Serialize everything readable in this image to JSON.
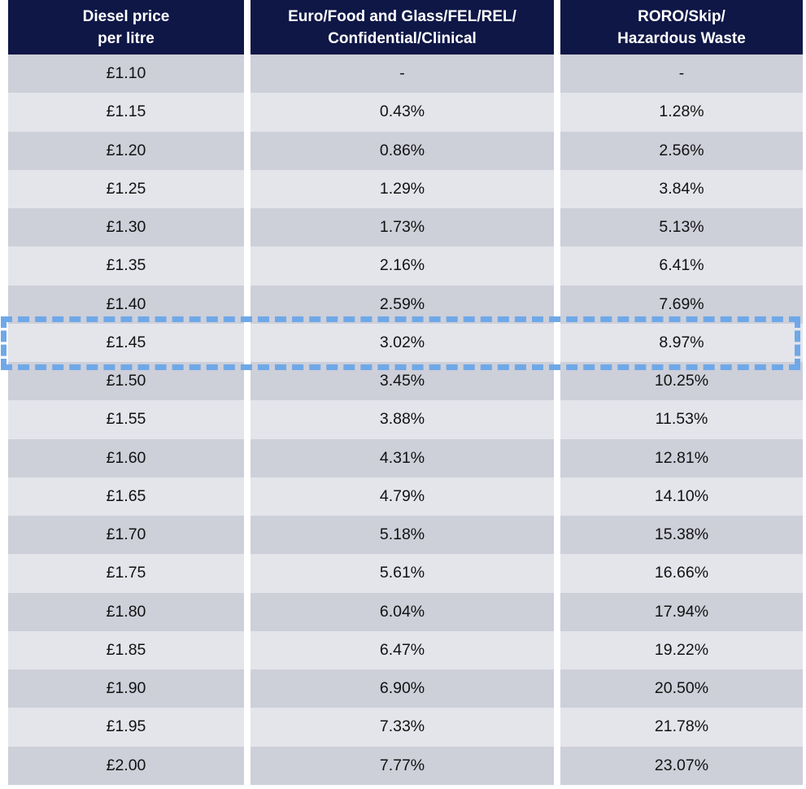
{
  "colors": {
    "header_bg": "#0F1747",
    "row_dark": "#CDCFD9",
    "row_light": "#E4E5EB",
    "highlight_border": "#6FA8E8"
  },
  "table": {
    "headers": {
      "diesel_price": "Diesel price\nper litre",
      "euro_group": "Euro/Food and Glass/FEL/REL/\nConfidential/Clinical",
      "roro_group": "RORO/Skip/\nHazardous Waste"
    },
    "rows": [
      {
        "price": "£1.10",
        "euro": "-",
        "roro": "-"
      },
      {
        "price": "£1.15",
        "euro": "0.43%",
        "roro": "1.28%"
      },
      {
        "price": "£1.20",
        "euro": "0.86%",
        "roro": "2.56%"
      },
      {
        "price": "£1.25",
        "euro": "1.29%",
        "roro": "3.84%"
      },
      {
        "price": "£1.30",
        "euro": "1.73%",
        "roro": "5.13%"
      },
      {
        "price": "£1.35",
        "euro": "2.16%",
        "roro": "6.41%"
      },
      {
        "price": "£1.40",
        "euro": "2.59%",
        "roro": "7.69%"
      },
      {
        "price": "£1.45",
        "euro": "3.02%",
        "roro": "8.97%"
      },
      {
        "price": "£1.50",
        "euro": "3.45%",
        "roro": "10.25%"
      },
      {
        "price": "£1.55",
        "euro": "3.88%",
        "roro": "11.53%"
      },
      {
        "price": "£1.60",
        "euro": "4.31%",
        "roro": "12.81%"
      },
      {
        "price": "£1.65",
        "euro": "4.79%",
        "roro": "14.10%"
      },
      {
        "price": "£1.70",
        "euro": "5.18%",
        "roro": "15.38%"
      },
      {
        "price": "£1.75",
        "euro": "5.61%",
        "roro": "16.66%"
      },
      {
        "price": "£1.80",
        "euro": "6.04%",
        "roro": "17.94%"
      },
      {
        "price": "£1.85",
        "euro": "6.47%",
        "roro": "19.22%"
      },
      {
        "price": "£1.90",
        "euro": "6.90%",
        "roro": "20.50%"
      },
      {
        "price": "£1.95",
        "euro": "7.33%",
        "roro": "21.78%"
      },
      {
        "price": "£2.00",
        "euro": "7.77%",
        "roro": "23.07%"
      }
    ],
    "highlight": {
      "row_price": "£1.45",
      "row_index": 7
    }
  },
  "chart_data": {
    "type": "table",
    "columns": [
      "Diesel price per litre",
      "Euro/Food and Glass/FEL/REL/Confidential/Clinical",
      "RORO/Skip/Hazardous Waste"
    ],
    "rows": [
      [
        "£1.10",
        "-",
        "-"
      ],
      [
        "£1.15",
        "0.43%",
        "1.28%"
      ],
      [
        "£1.20",
        "0.86%",
        "2.56%"
      ],
      [
        "£1.25",
        "1.29%",
        "3.84%"
      ],
      [
        "£1.30",
        "1.73%",
        "5.13%"
      ],
      [
        "£1.35",
        "2.16%",
        "6.41%"
      ],
      [
        "£1.40",
        "2.59%",
        "7.69%"
      ],
      [
        "£1.45",
        "3.02%",
        "8.97%"
      ],
      [
        "£1.50",
        "3.45%",
        "10.25%"
      ],
      [
        "£1.55",
        "3.88%",
        "11.53%"
      ],
      [
        "£1.60",
        "4.31%",
        "12.81%"
      ],
      [
        "£1.65",
        "4.79%",
        "14.10%"
      ],
      [
        "£1.70",
        "5.18%",
        "15.38%"
      ],
      [
        "£1.75",
        "5.61%",
        "16.66%"
      ],
      [
        "£1.80",
        "6.04%",
        "17.94%"
      ],
      [
        "£1.85",
        "6.47%",
        "19.22%"
      ],
      [
        "£1.90",
        "6.90%",
        "20.50%"
      ],
      [
        "£1.95",
        "7.33%",
        "21.78%"
      ],
      [
        "£2.00",
        "7.77%",
        "23.07%"
      ]
    ],
    "highlighted_row": [
      "£1.45",
      "3.02%",
      "8.97%"
    ]
  }
}
